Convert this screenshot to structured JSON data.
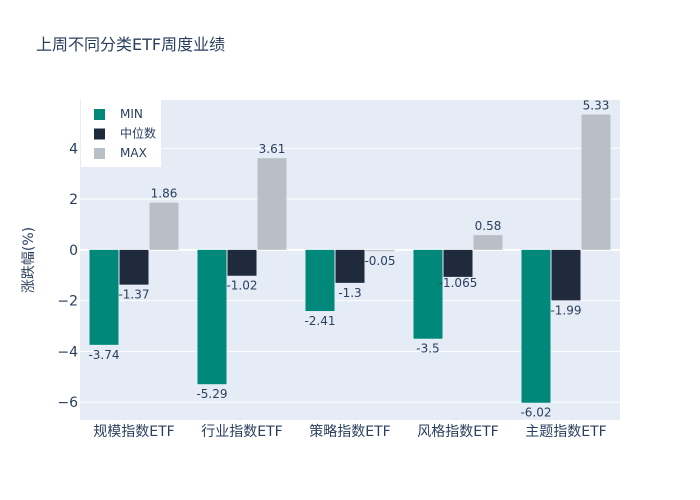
{
  "chart_data": {
    "type": "bar",
    "title": "上周不同分类ETF周度业绩",
    "ylabel": "涨跌幅(%)",
    "xlabel": "",
    "categories": [
      "规模指数ETF",
      "行业指数ETF",
      "策略指数ETF",
      "风格指数ETF",
      "主题指数ETF"
    ],
    "series": [
      {
        "name": "MIN",
        "color": "#00897b",
        "values": [
          -3.74,
          -5.29,
          -2.41,
          -3.5,
          -6.02
        ],
        "labels": [
          "-3.74",
          "-5.29",
          "-2.41",
          "-3.5",
          "-6.02"
        ]
      },
      {
        "name": "中位数",
        "color": "#1f2a3d",
        "values": [
          -1.37,
          -1.02,
          -1.3,
          -1.065,
          -1.99
        ],
        "labels": [
          "-1.37",
          "-1.02",
          "-1.3",
          "-1.065",
          "-1.99"
        ]
      },
      {
        "name": "MAX",
        "color": "#b9bfc7",
        "values": [
          1.86,
          3.61,
          -0.05,
          0.58,
          5.33
        ],
        "labels": [
          "1.86",
          "3.61",
          "-0.05",
          "0.58",
          "5.33"
        ]
      }
    ],
    "ylim": [
      -6.7,
      5.9
    ],
    "yticks": [
      {
        "v": -6,
        "label": "−6"
      },
      {
        "v": -4,
        "label": "−4"
      },
      {
        "v": -2,
        "label": "−2"
      },
      {
        "v": 0,
        "label": "0"
      },
      {
        "v": 2,
        "label": "2"
      },
      {
        "v": 4,
        "label": "4"
      }
    ],
    "grid": true,
    "legend": "top-left",
    "plot_bg": "#e5ecf6"
  }
}
